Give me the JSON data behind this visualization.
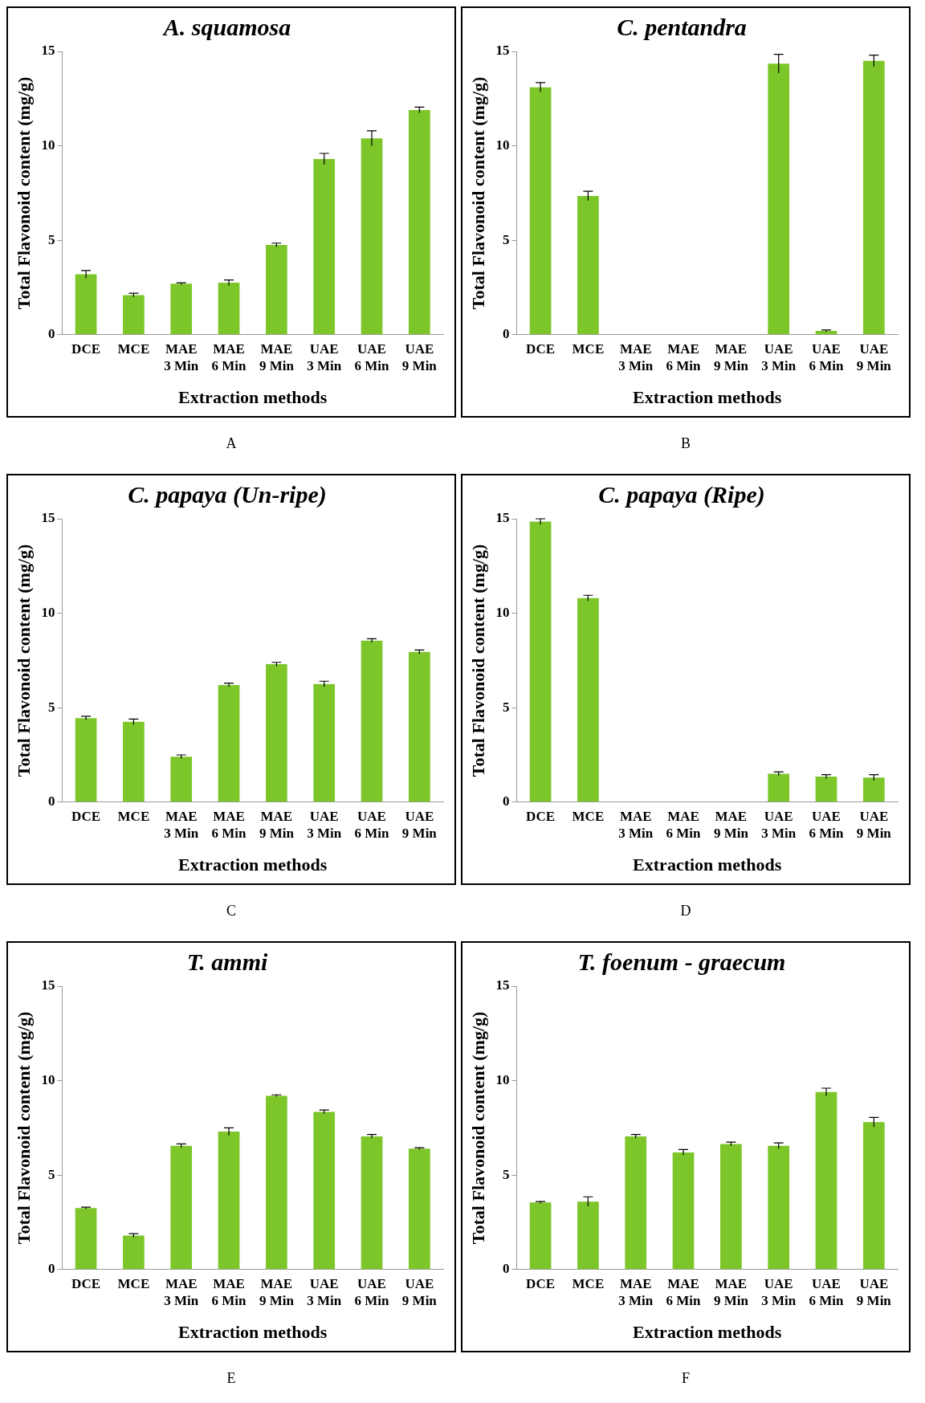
{
  "chart_data": [
    {
      "type": "bar",
      "title": "A. squamosa",
      "xlabel": "Extraction methods",
      "ylabel": "Total Flavonoid content (mg/g)",
      "categories": [
        "DCE",
        "MCE",
        "MAE 3 Min",
        "MAE 6 Min",
        "MAE 9 Min",
        "UAE 3 Min",
        "UAE 6 Min",
        "UAE 9 Min"
      ],
      "values": [
        3.2,
        2.1,
        2.7,
        2.75,
        4.75,
        9.3,
        10.4,
        11.9
      ],
      "errors": [
        0.2,
        0.1,
        0.05,
        0.15,
        0.1,
        0.3,
        0.4,
        0.15
      ],
      "color": "#7cc62a",
      "ylim": [
        0,
        15
      ],
      "yticks": [
        0,
        5,
        10,
        15
      ],
      "grid": false,
      "annotations": [
        "A"
      ]
    },
    {
      "type": "bar",
      "title": "C. pentandra",
      "xlabel": "Extraction methods",
      "ylabel": "Total Flavonoid content (mg/g)",
      "categories": [
        "DCE",
        "MCE",
        "MAE 3 Min",
        "MAE 6 Min",
        "MAE 9 Min",
        "UAE 3 Min",
        "UAE 6 Min",
        "UAE 9 Min"
      ],
      "values": [
        13.1,
        7.35,
        0,
        0,
        0,
        14.35,
        0.2,
        14.5
      ],
      "errors": [
        0.25,
        0.25,
        null,
        null,
        null,
        0.5,
        0.05,
        0.3
      ],
      "color": "#7cc62a",
      "ylim": [
        0,
        15
      ],
      "yticks": [
        0,
        5,
        10,
        15
      ],
      "grid": false,
      "annotations": [
        "B"
      ]
    },
    {
      "type": "bar",
      "title": "C. papaya (Un-ripe)",
      "xlabel": "Extraction methods",
      "ylabel": "Total Flavonoid content (mg/g)",
      "categories": [
        "DCE",
        "MCE",
        "MAE 3 Min",
        "MAE 6 Min",
        "MAE 9 Min",
        "UAE 3 Min",
        "UAE 6 Min",
        "UAE 9 Min"
      ],
      "values": [
        4.45,
        4.25,
        2.4,
        6.2,
        7.3,
        6.25,
        8.55,
        7.95
      ],
      "errors": [
        0.1,
        0.15,
        0.1,
        0.1,
        0.1,
        0.15,
        0.1,
        0.1
      ],
      "color": "#7cc62a",
      "ylim": [
        0,
        15
      ],
      "yticks": [
        0,
        5,
        10,
        15
      ],
      "grid": false,
      "annotations": [
        "C"
      ]
    },
    {
      "type": "bar",
      "title": "C. papaya (Ripe)",
      "xlabel": "Extraction methods",
      "ylabel": "Total Flavonoid content (mg/g)",
      "categories": [
        "DCE",
        "MCE",
        "MAE 3 Min",
        "MAE 6 Min",
        "MAE 9 Min",
        "UAE 3 Min",
        "UAE 6 Min",
        "UAE 9 Min"
      ],
      "values": [
        14.85,
        10.8,
        0,
        0,
        0,
        1.5,
        1.35,
        1.3
      ],
      "errors": [
        0.15,
        0.15,
        null,
        null,
        null,
        0.1,
        0.1,
        0.15
      ],
      "color": "#7cc62a",
      "ylim": [
        0,
        15
      ],
      "yticks": [
        0,
        5,
        10,
        15
      ],
      "grid": false,
      "annotations": [
        "D"
      ]
    },
    {
      "type": "bar",
      "title": "T. ammi",
      "xlabel": "Extraction methods",
      "ylabel": "Total Flavonoid content (mg/g)",
      "categories": [
        "DCE",
        "MCE",
        "MAE 3 Min",
        "MAE 6 Min",
        "MAE 9 Min",
        "UAE 3 Min",
        "UAE 6 Min",
        "UAE 9 Min"
      ],
      "values": [
        3.25,
        1.8,
        6.55,
        7.3,
        9.2,
        8.35,
        7.05,
        6.4
      ],
      "errors": [
        0.05,
        0.1,
        0.1,
        0.2,
        0.05,
        0.1,
        0.1,
        0.05
      ],
      "color": "#7cc62a",
      "ylim": [
        0,
        15
      ],
      "yticks": [
        0,
        5,
        10,
        15
      ],
      "grid": false,
      "annotations": [
        "E"
      ]
    },
    {
      "type": "bar",
      "title": "T. foenum - graecum",
      "xlabel": "Extraction methods",
      "ylabel": "Total Flavonoid content (mg/g)",
      "categories": [
        "DCE",
        "MCE",
        "MAE 3 Min",
        "MAE 6 Min",
        "MAE 9 Min",
        "UAE 3 Min",
        "UAE 6 Min",
        "UAE 9 Min"
      ],
      "values": [
        3.55,
        3.6,
        7.05,
        6.2,
        6.65,
        6.55,
        9.4,
        7.8
      ],
      "errors": [
        0.05,
        0.25,
        0.1,
        0.15,
        0.1,
        0.15,
        0.2,
        0.25
      ],
      "color": "#7cc62a",
      "ylim": [
        0,
        15
      ],
      "yticks": [
        0,
        5,
        10,
        15
      ],
      "grid": false,
      "annotations": [
        "F"
      ]
    }
  ]
}
